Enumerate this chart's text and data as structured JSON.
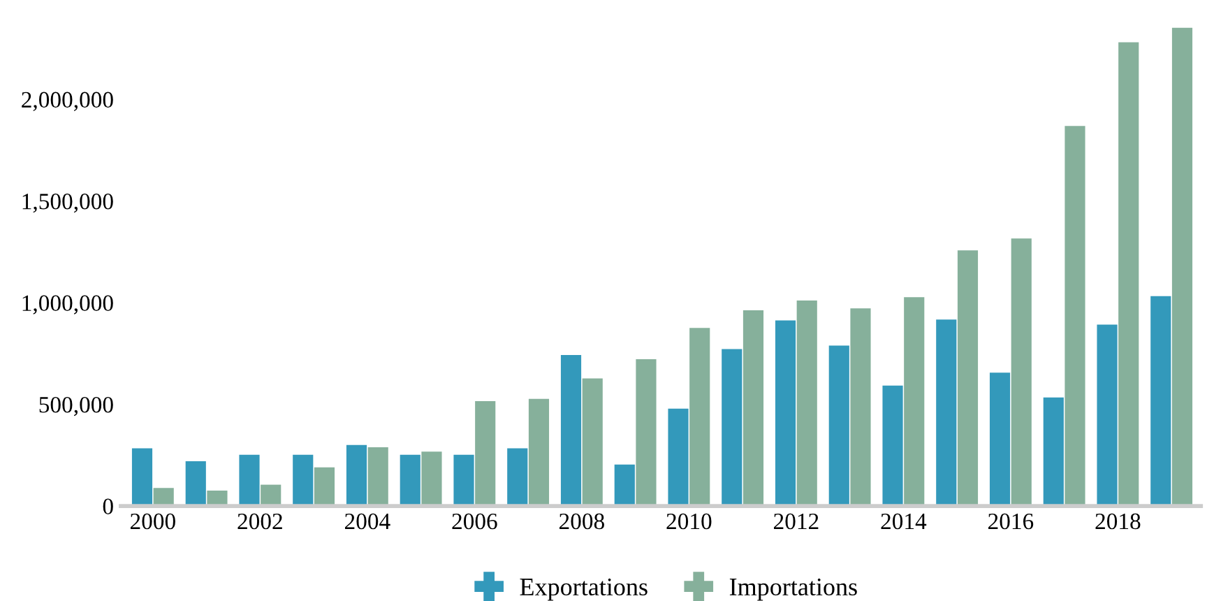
{
  "chart_data": {
    "type": "bar",
    "categories": [
      "2000",
      null,
      "2002",
      null,
      "2004",
      null,
      "2006",
      null,
      "2008",
      null,
      "2010",
      null,
      "2012",
      null,
      "2014",
      null,
      "2016",
      null,
      "2018",
      null
    ],
    "series": [
      {
        "name": "Exportations",
        "color": "#3399bb",
        "values": [
          284000,
          220000,
          252000,
          252000,
          300000,
          252000,
          252000,
          284000,
          743000,
          204000,
          479000,
          772000,
          913000,
          789000,
          592000,
          917000,
          656000,
          534000,
          892000,
          1032000
        ]
      },
      {
        "name": "Importations",
        "color": "#86b09b",
        "values": [
          89000,
          76000,
          105000,
          190000,
          289000,
          268000,
          516000,
          527000,
          628000,
          722000,
          876000,
          963000,
          1011000,
          972000,
          1027000,
          1257000,
          1316000,
          1869000,
          2281000,
          2352000
        ]
      }
    ],
    "ylim": [
      0,
      2400000
    ],
    "yticks": [
      {
        "value": 0,
        "label": "0"
      },
      {
        "value": 500000,
        "label": "500,000"
      },
      {
        "value": 1000000,
        "label": "1,000,000"
      },
      {
        "value": 1500000,
        "label": "1,500,000"
      },
      {
        "value": 2000000,
        "label": "2,000,000"
      }
    ],
    "grid": false,
    "legend": "bottom"
  }
}
